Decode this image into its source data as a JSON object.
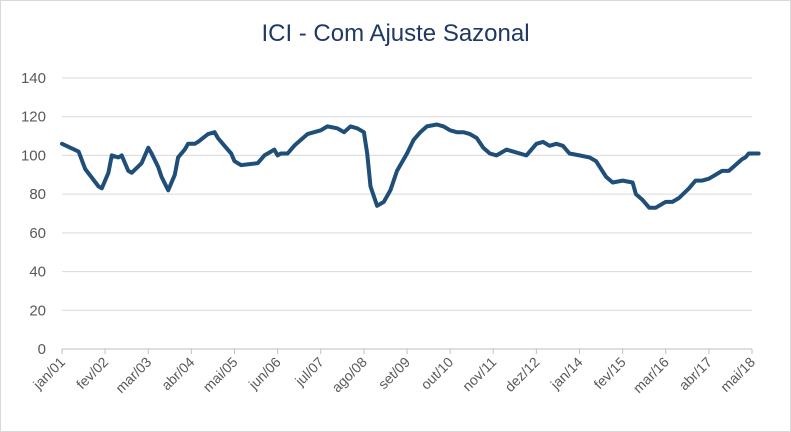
{
  "chart_data": {
    "type": "line",
    "title": "ICI - Com Ajuste Sazonal",
    "xlabel": "",
    "ylabel": "",
    "ylim": [
      0,
      140
    ],
    "yticks": [
      0,
      20,
      40,
      60,
      80,
      100,
      120,
      140
    ],
    "grid": true,
    "legend": "none",
    "line_color": "#1f4e79",
    "grid_color": "#d9d9d9",
    "axis_color": "#bfbfbf",
    "title_color": "#1f3864",
    "xtick_labels": [
      "jan/01",
      "fev/02",
      "mar/03",
      "abr/04",
      "mai/05",
      "jun/06",
      "jul/07",
      "ago/08",
      "set/09",
      "out/10",
      "nov/11",
      "dez/12",
      "jan/14",
      "fev/15",
      "mar/16",
      "abr/17",
      "mai/18"
    ],
    "series": [
      {
        "name": "",
        "points": [
          [
            "jan/01",
            106
          ],
          [
            "jun/01",
            102
          ],
          [
            "ago/01",
            93
          ],
          [
            "dez/01",
            84
          ],
          [
            "jan/02",
            83
          ],
          [
            "mar/02",
            91
          ],
          [
            "abr/02",
            100
          ],
          [
            "jun/02",
            99
          ],
          [
            "jul/02",
            100
          ],
          [
            "set/02",
            92
          ],
          [
            "out/02",
            91
          ],
          [
            "jan/03",
            96
          ],
          [
            "mar/03",
            104
          ],
          [
            "abr/03",
            101
          ],
          [
            "jun/03",
            94
          ],
          [
            "jul/03",
            89
          ],
          [
            "set/03",
            82
          ],
          [
            "nov/03",
            90
          ],
          [
            "dez/03",
            99
          ],
          [
            "fev/04",
            103
          ],
          [
            "mar/04",
            106
          ],
          [
            "mai/04",
            106
          ],
          [
            "jun/04",
            107
          ],
          [
            "set/04",
            111
          ],
          [
            "nov/04",
            112
          ],
          [
            "dez/04",
            109
          ],
          [
            "fev/05",
            105
          ],
          [
            "abr/05",
            101
          ],
          [
            "mai/05",
            97
          ],
          [
            "jul/05",
            95
          ],
          [
            "dez/05",
            96
          ],
          [
            "fev/06",
            100
          ],
          [
            "abr/06",
            102
          ],
          [
            "mai/06",
            103
          ],
          [
            "jun/06",
            100
          ],
          [
            "jul/06",
            101
          ],
          [
            "set/06",
            101
          ],
          [
            "nov/06",
            105
          ],
          [
            "jan/07",
            108
          ],
          [
            "mar/07",
            111
          ],
          [
            "mai/07",
            112
          ],
          [
            "jul/07",
            113
          ],
          [
            "set/07",
            115
          ],
          [
            "dez/07",
            114
          ],
          [
            "fev/08",
            112
          ],
          [
            "abr/08",
            115
          ],
          [
            "jun/08",
            114
          ],
          [
            "ago/08",
            112
          ],
          [
            "set/08",
            101
          ],
          [
            "out/08",
            84
          ],
          [
            "dez/08",
            74
          ],
          [
            "fev/09",
            76
          ],
          [
            "abr/09",
            82
          ],
          [
            "jun/09",
            92
          ],
          [
            "set/09",
            101
          ],
          [
            "nov/09",
            108
          ],
          [
            "jan/10",
            112
          ],
          [
            "mar/10",
            115
          ],
          [
            "jun/10",
            116
          ],
          [
            "ago/10",
            115
          ],
          [
            "out/10",
            113
          ],
          [
            "dez/10",
            112
          ],
          [
            "fev/11",
            112
          ],
          [
            "abr/11",
            111
          ],
          [
            "jun/11",
            109
          ],
          [
            "ago/11",
            104
          ],
          [
            "out/11",
            101
          ],
          [
            "dez/11",
            100
          ],
          [
            "mar/12",
            103
          ],
          [
            "mai/12",
            102
          ],
          [
            "jul/12",
            101
          ],
          [
            "set/12",
            100
          ],
          [
            "dez/12",
            106
          ],
          [
            "fev/13",
            107
          ],
          [
            "abr/13",
            105
          ],
          [
            "jun/13",
            106
          ],
          [
            "ago/13",
            105
          ],
          [
            "out/13",
            101
          ],
          [
            "jan/14",
            100
          ],
          [
            "abr/14",
            99
          ],
          [
            "jun/14",
            97
          ],
          [
            "set/14",
            89
          ],
          [
            "nov/14",
            86
          ],
          [
            "fev/15",
            87
          ],
          [
            "mai/15",
            86
          ],
          [
            "jun/15",
            80
          ],
          [
            "ago/15",
            77
          ],
          [
            "out/15",
            73
          ],
          [
            "dez/15",
            73
          ],
          [
            "fev/16",
            75
          ],
          [
            "mar/16",
            76
          ],
          [
            "mai/16",
            76
          ],
          [
            "jul/16",
            78
          ],
          [
            "out/16",
            83
          ],
          [
            "dez/16",
            87
          ],
          [
            "fev/17",
            87
          ],
          [
            "abr/17",
            88
          ],
          [
            "jun/17",
            90
          ],
          [
            "ago/17",
            92
          ],
          [
            "out/17",
            92
          ],
          [
            "dez/17",
            95
          ],
          [
            "fev/18",
            98
          ],
          [
            "mar/18",
            99
          ],
          [
            "abr/18",
            101
          ],
          [
            "mai/18",
            101
          ],
          [
            "jul/18",
            101
          ]
        ]
      }
    ]
  }
}
